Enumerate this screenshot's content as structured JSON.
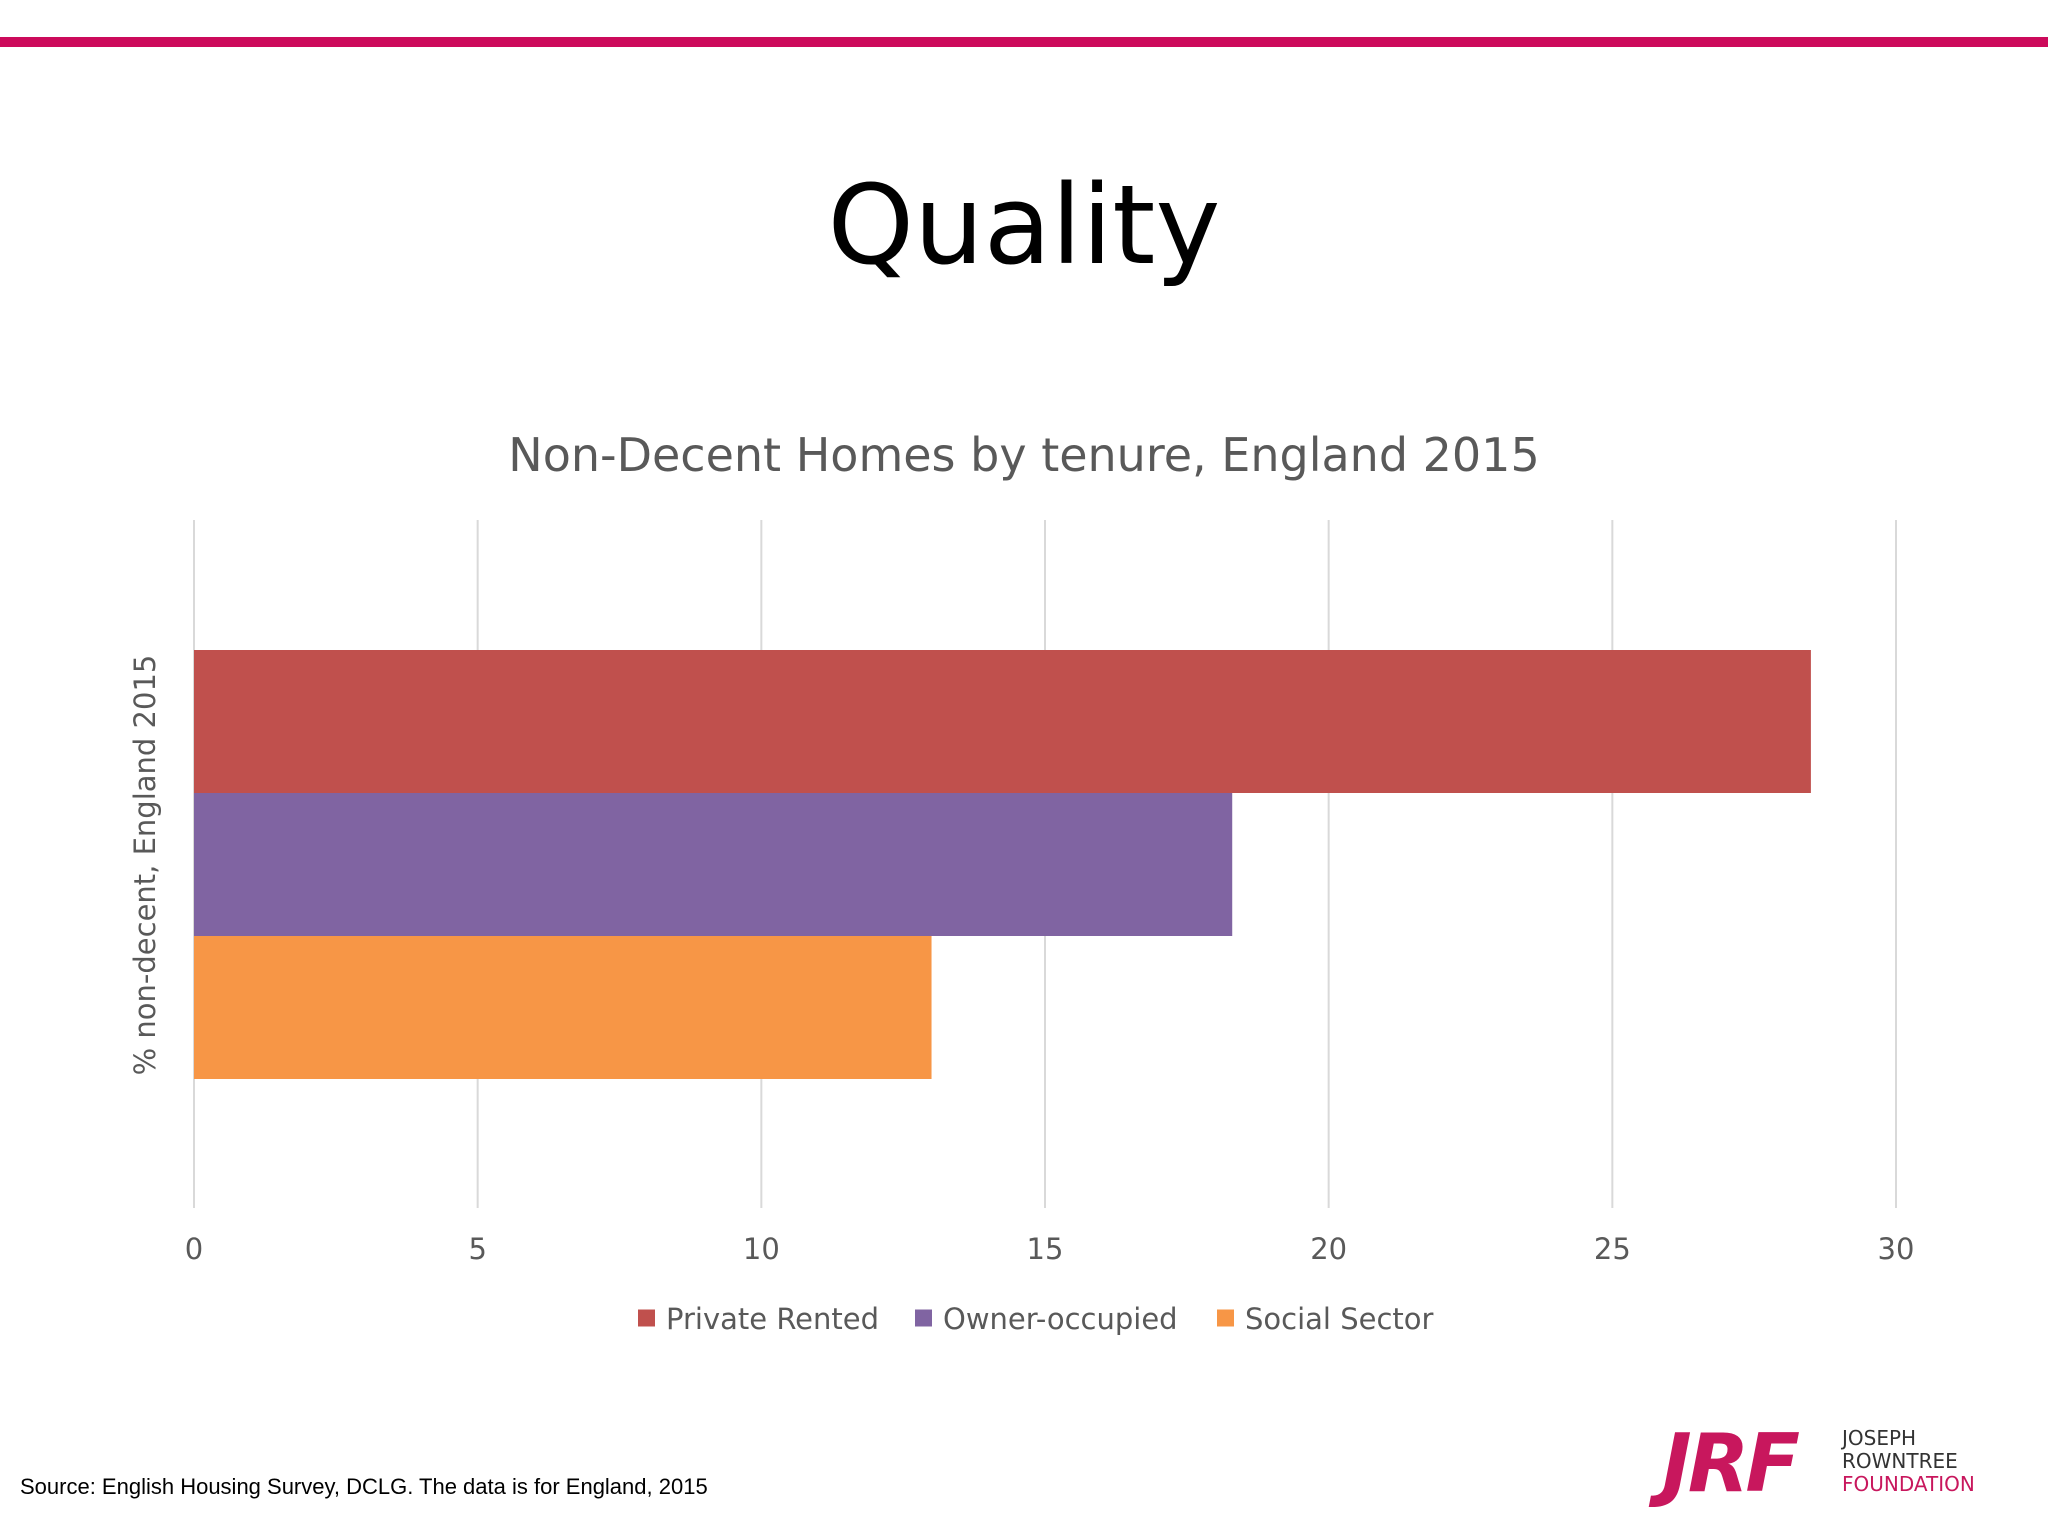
{
  "slide": {
    "title": "Quality",
    "source": "Source: English Housing Survey, DCLG. The data is for England, 2015",
    "accent_color": "#cc0a5b"
  },
  "logo": {
    "letters": "JRF",
    "line1": "JOSEPH",
    "line2": "ROWNTREE",
    "line3": "FOUNDATION",
    "letters_color": "#c8175d",
    "line1_color": "#333333",
    "line2_color": "#333333",
    "line3_color": "#c8175d"
  },
  "chart_data": {
    "type": "bar",
    "orientation": "horizontal",
    "title": "Non-Decent Homes by tenure, England 2015",
    "xlabel": "",
    "ylabel": "% non-decent, England 2015",
    "xlim": [
      0,
      30
    ],
    "xticks": [
      0,
      5,
      10,
      15,
      20,
      25,
      30
    ],
    "grid": true,
    "legend_position": "bottom",
    "series": [
      {
        "name": "Private Rented",
        "value": 28.5,
        "color": "#c0504d"
      },
      {
        "name": "Owner-occupied",
        "value": 18.3,
        "color": "#8064a2"
      },
      {
        "name": "Social Sector",
        "value": 13.0,
        "color": "#f79646"
      }
    ],
    "title_color": "#595959",
    "text_color": "#595959",
    "grid_color": "#d9d9d9"
  }
}
